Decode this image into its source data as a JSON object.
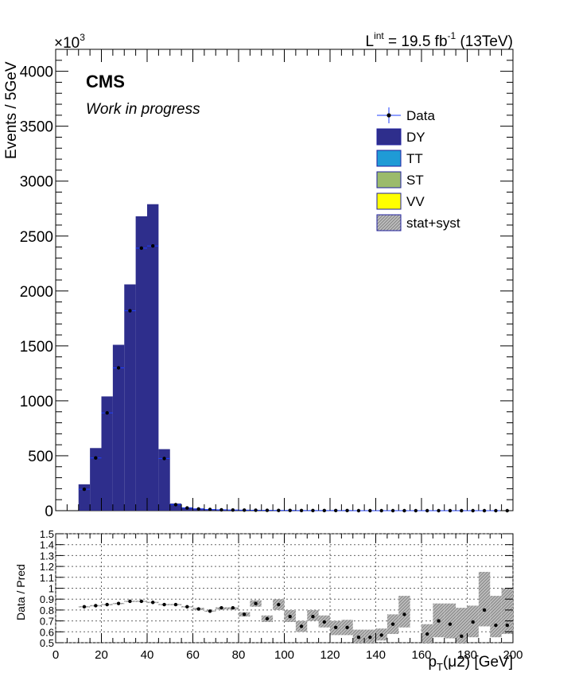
{
  "lumi": {
    "prefix": "L",
    "sup": "int",
    "text": " = 19.5 fb",
    "sup2": "-1",
    "suffix": " (13TeV)"
  },
  "cms_label": "CMS",
  "cms_sublabel": "Work in progress",
  "exponent": {
    "base": "×10",
    "sup": "3"
  },
  "colors": {
    "DY": "#2e2e8c",
    "TT": "#1f9bd6",
    "ST": "#9bbb6b",
    "VV": "#ffff00",
    "data": "#000000",
    "errbar": "#1f3fff",
    "band": "#bbbbbb"
  },
  "chart_data": [
    {
      "type": "bar",
      "name": "main",
      "xlim": [
        0,
        200
      ],
      "ylim": [
        0,
        4200
      ],
      "ylabel": "Events / 5GeV",
      "yticks": [
        "0",
        "500",
        "1000",
        "1500",
        "2000",
        "2500",
        "3000",
        "3500",
        "4000"
      ],
      "bin_edges": [
        0,
        5,
        10,
        15,
        20,
        25,
        30,
        35,
        40,
        45,
        50,
        55,
        60,
        65,
        70,
        75,
        80,
        85,
        90,
        95,
        100,
        105,
        110,
        115,
        120,
        125,
        130,
        135,
        140,
        145,
        150,
        155,
        160,
        165,
        170,
        175,
        180,
        185,
        190,
        195,
        200
      ],
      "stack_DY": [
        0,
        0,
        240,
        570,
        1040,
        1510,
        2060,
        2680,
        2790,
        560,
        65,
        30,
        20,
        14,
        10,
        8,
        6,
        5,
        4,
        3,
        2,
        2,
        2,
        1,
        1,
        1,
        1,
        1,
        1,
        1,
        0,
        0,
        0,
        0,
        0,
        0,
        0,
        0,
        0,
        0
      ],
      "data_x": [
        12.5,
        17.5,
        22.5,
        27.5,
        32.5,
        37.5,
        42.5,
        47.5,
        52.5,
        57.5,
        62.5,
        67.5,
        72.5,
        77.5,
        82.5,
        87.5,
        92.5,
        97.5,
        102.5,
        107.5,
        112.5,
        117.5,
        122.5,
        127.5,
        132.5,
        137.5,
        142.5,
        147.5,
        152.5,
        157.5,
        162.5,
        167.5,
        172.5,
        177.5,
        182.5,
        187.5,
        192.5,
        197.5
      ],
      "data_y": [
        195,
        480,
        890,
        1300,
        1820,
        2390,
        2410,
        475,
        55,
        25,
        16,
        11,
        8,
        6,
        5,
        4,
        3,
        2,
        2,
        1,
        1,
        1,
        1,
        1,
        0,
        0,
        0,
        0,
        0,
        0,
        0,
        0,
        0,
        0,
        0,
        0,
        0,
        0
      ],
      "legend": [
        {
          "label": "Data",
          "kind": "data"
        },
        {
          "label": "DY",
          "kind": "fill",
          "color": "#2e2e8c"
        },
        {
          "label": "TT",
          "kind": "fill",
          "color": "#1f9bd6"
        },
        {
          "label": "ST",
          "kind": "fill",
          "color": "#9bbb6b"
        },
        {
          "label": "VV",
          "kind": "fill",
          "color": "#ffff00"
        },
        {
          "label": "stat+syst",
          "kind": "hatch"
        }
      ],
      "legend_position": "top-right"
    },
    {
      "type": "scatter",
      "name": "ratio",
      "xlim": [
        0,
        200
      ],
      "ylim": [
        0.5,
        1.5
      ],
      "ylabel": "Data / Pred",
      "xlabel_pre": "p",
      "xlabel_sub": "T",
      "xlabel_post": "(μ2) [GeV]",
      "xticks": [
        "0",
        "20",
        "40",
        "60",
        "80",
        "100",
        "120",
        "140",
        "160",
        "180",
        "200"
      ],
      "yticks": [
        "0.5",
        "0.6",
        "0.7",
        "0.8",
        "0.9",
        "1",
        "1.1",
        "1.2",
        "1.3",
        "1.4",
        "1.5"
      ],
      "grid": true,
      "x": [
        12.5,
        17.5,
        22.5,
        27.5,
        32.5,
        37.5,
        42.5,
        47.5,
        52.5,
        57.5,
        62.5,
        67.5,
        72.5,
        77.5,
        82.5,
        87.5,
        92.5,
        97.5,
        102.5,
        107.5,
        112.5,
        117.5,
        122.5,
        127.5,
        132.5,
        137.5,
        142.5,
        147.5,
        152.5,
        162.5,
        167.5,
        172.5,
        177.5,
        182.5,
        187.5,
        192.5,
        197.5
      ],
      "y": [
        0.83,
        0.84,
        0.85,
        0.86,
        0.88,
        0.88,
        0.87,
        0.85,
        0.85,
        0.83,
        0.81,
        0.79,
        0.82,
        0.82,
        0.76,
        0.86,
        0.72,
        0.85,
        0.74,
        0.65,
        0.74,
        0.69,
        0.64,
        0.64,
        0.55,
        0.55,
        0.57,
        0.67,
        0.76,
        0.58,
        0.7,
        0.67,
        0.56,
        0.69,
        0.8,
        0.66,
        0.66
      ],
      "band_edges": [
        10,
        15,
        20,
        25,
        30,
        35,
        40,
        45,
        50,
        55,
        60,
        65,
        70,
        75,
        80,
        85,
        90,
        95,
        100,
        105,
        110,
        115,
        120,
        125,
        130,
        135,
        140,
        145,
        150,
        155,
        160,
        165,
        170,
        175,
        180,
        185,
        190,
        195,
        200
      ],
      "band_lo": [
        0.825,
        0.835,
        0.845,
        0.855,
        0.875,
        0.875,
        0.865,
        0.845,
        0.845,
        0.825,
        0.8,
        0.785,
        0.805,
        0.805,
        0.74,
        0.83,
        0.69,
        0.8,
        0.69,
        0.6,
        0.7,
        0.64,
        0.57,
        0.57,
        0.5,
        0.5,
        0.52,
        0.58,
        0.64,
        0,
        0.5,
        0.55,
        0.54,
        0.5,
        0.55,
        0.65,
        0.55,
        0.58
      ],
      "band_hi": [
        0.835,
        0.845,
        0.855,
        0.865,
        0.885,
        0.885,
        0.875,
        0.855,
        0.855,
        0.835,
        0.82,
        0.795,
        0.825,
        0.825,
        0.78,
        0.89,
        0.75,
        0.9,
        0.8,
        0.7,
        0.8,
        0.75,
        0.7,
        0.71,
        0.62,
        0.62,
        0.63,
        0.76,
        0.93,
        0,
        0.67,
        0.86,
        0.86,
        0.82,
        0.84,
        1.15,
        0.93,
        1.0
      ]
    }
  ]
}
